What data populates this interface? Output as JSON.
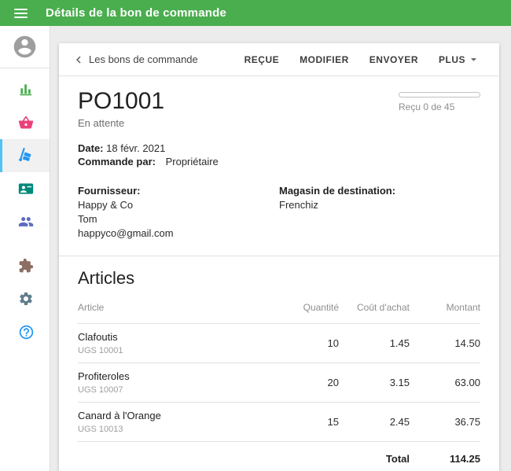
{
  "appbar": {
    "title": "Détails de la bon de commande",
    "bg_color": "#4aad4e"
  },
  "sidebar": {
    "selected_indicator_color": "#4fc3f7",
    "items": [
      {
        "icon": "account-circle-icon",
        "color": "#9e9e9e"
      },
      {
        "icon": "reports-chart-icon",
        "color": "#4caf50"
      },
      {
        "icon": "items-basket-icon",
        "color": "#ec407a"
      },
      {
        "icon": "inventory-trolley-icon",
        "color": "#2196f3",
        "selected": true
      },
      {
        "icon": "customers-card-icon",
        "color": "#00897b"
      },
      {
        "icon": "employees-people-icon",
        "color": "#5c6bc0"
      },
      {
        "icon": "apps-puzzle-icon",
        "color": "#8d6e63"
      },
      {
        "icon": "settings-gear-icon",
        "color": "#607d8b"
      },
      {
        "icon": "help-icon",
        "color": "#2196f3"
      }
    ]
  },
  "toolbar": {
    "back_label": "Les bons de commande",
    "actions": [
      "REÇUE",
      "MODIFIER",
      "ENVOYER"
    ],
    "more_label": "PLUS"
  },
  "order": {
    "number": "PO1001",
    "status": "En attente",
    "progress_percent": 0,
    "received_label": "Reçu 0 de 45",
    "date_label": "Date:",
    "date_value": "18 févr. 2021",
    "ordered_by_label": "Commande par:",
    "ordered_by_value": "Propriétaire",
    "supplier_label": "Fournisseur:",
    "supplier_lines": [
      "Happy & Co",
      "Tom",
      "happyco@gmail.com"
    ],
    "destination_label": "Magasin de destination:",
    "destination_value": "Frenchiz"
  },
  "articles": {
    "heading": "Articles",
    "columns": [
      "Article",
      "Quantité",
      "Coût d'achat",
      "Montant"
    ],
    "rows": [
      {
        "name": "Clafoutis",
        "sku": "UGS 10001",
        "qty": "10",
        "cost": "1.45",
        "amount": "14.50"
      },
      {
        "name": "Profiteroles",
        "sku": "UGS 10007",
        "qty": "20",
        "cost": "3.15",
        "amount": "63.00"
      },
      {
        "name": "Canard à l'Orange",
        "sku": "UGS 10013",
        "qty": "15",
        "cost": "2.45",
        "amount": "36.75"
      }
    ],
    "total_label": "Total",
    "total_value": "114.25"
  }
}
